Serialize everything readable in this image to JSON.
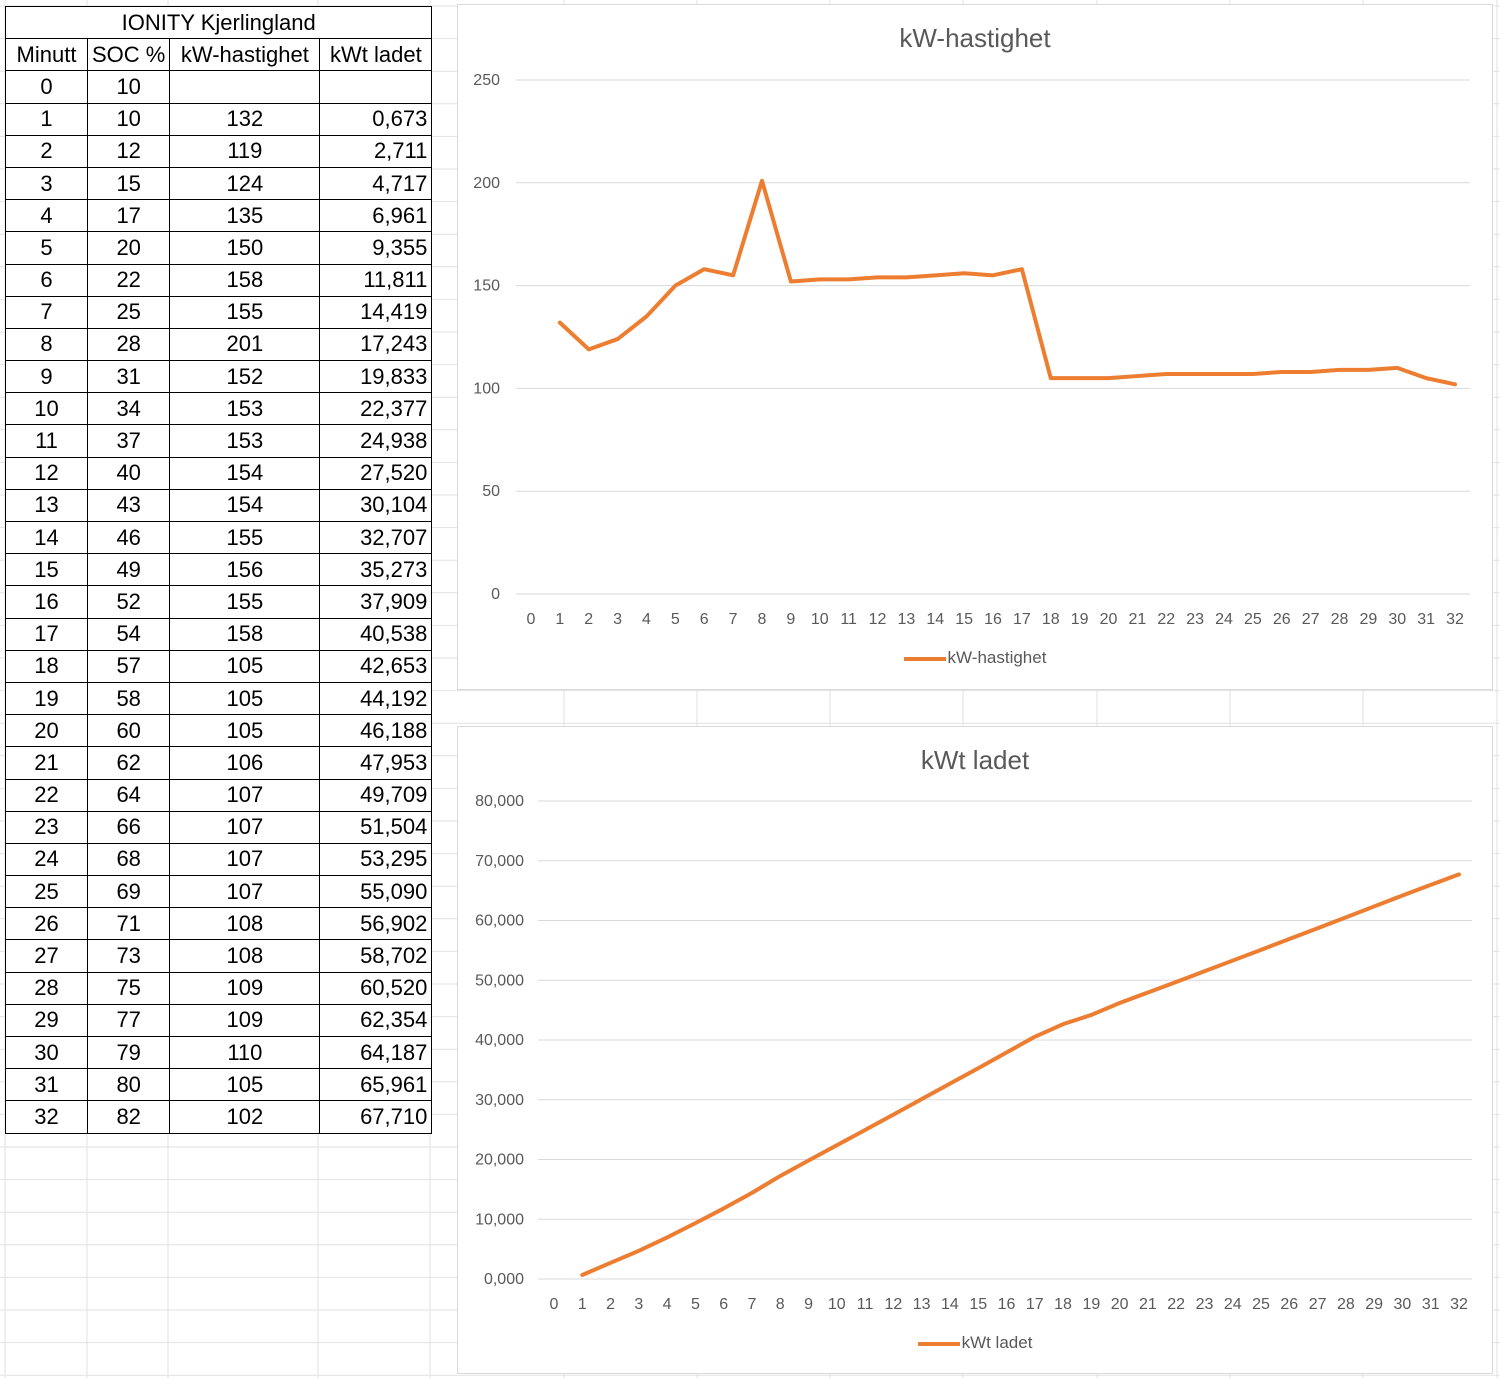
{
  "table": {
    "title": "IONITY Kjerlingland",
    "headers": [
      "Minutt",
      "SOC %",
      "kW-hastighet",
      "kWt ladet"
    ],
    "rows": [
      [
        "0",
        "10",
        "",
        ""
      ],
      [
        "1",
        "10",
        "132",
        "0,673"
      ],
      [
        "2",
        "12",
        "119",
        "2,711"
      ],
      [
        "3",
        "15",
        "124",
        "4,717"
      ],
      [
        "4",
        "17",
        "135",
        "6,961"
      ],
      [
        "5",
        "20",
        "150",
        "9,355"
      ],
      [
        "6",
        "22",
        "158",
        "11,811"
      ],
      [
        "7",
        "25",
        "155",
        "14,419"
      ],
      [
        "8",
        "28",
        "201",
        "17,243"
      ],
      [
        "9",
        "31",
        "152",
        "19,833"
      ],
      [
        "10",
        "34",
        "153",
        "22,377"
      ],
      [
        "11",
        "37",
        "153",
        "24,938"
      ],
      [
        "12",
        "40",
        "154",
        "27,520"
      ],
      [
        "13",
        "43",
        "154",
        "30,104"
      ],
      [
        "14",
        "46",
        "155",
        "32,707"
      ],
      [
        "15",
        "49",
        "156",
        "35,273"
      ],
      [
        "16",
        "52",
        "155",
        "37,909"
      ],
      [
        "17",
        "54",
        "158",
        "40,538"
      ],
      [
        "18",
        "57",
        "105",
        "42,653"
      ],
      [
        "19",
        "58",
        "105",
        "44,192"
      ],
      [
        "20",
        "60",
        "105",
        "46,188"
      ],
      [
        "21",
        "62",
        "106",
        "47,953"
      ],
      [
        "22",
        "64",
        "107",
        "49,709"
      ],
      [
        "23",
        "66",
        "107",
        "51,504"
      ],
      [
        "24",
        "68",
        "107",
        "53,295"
      ],
      [
        "25",
        "69",
        "107",
        "55,090"
      ],
      [
        "26",
        "71",
        "108",
        "56,902"
      ],
      [
        "27",
        "73",
        "108",
        "58,702"
      ],
      [
        "28",
        "75",
        "109",
        "60,520"
      ],
      [
        "29",
        "77",
        "109",
        "62,354"
      ],
      [
        "30",
        "79",
        "110",
        "64,187"
      ],
      [
        "31",
        "80",
        "105",
        "65,961"
      ],
      [
        "32",
        "82",
        "102",
        "67,710"
      ]
    ]
  },
  "chart_data": [
    {
      "type": "line",
      "title": "kW-hastighet",
      "xlabel": "",
      "ylabel": "",
      "categories": [
        "0",
        "1",
        "2",
        "3",
        "4",
        "5",
        "6",
        "7",
        "8",
        "9",
        "10",
        "11",
        "12",
        "13",
        "14",
        "15",
        "16",
        "17",
        "18",
        "19",
        "20",
        "21",
        "22",
        "23",
        "24",
        "25",
        "26",
        "27",
        "28",
        "29",
        "30",
        "31",
        "32"
      ],
      "series": [
        {
          "name": "kW-hastighet",
          "values": [
            null,
            132,
            119,
            124,
            135,
            150,
            158,
            155,
            201,
            152,
            153,
            153,
            154,
            154,
            155,
            156,
            155,
            158,
            105,
            105,
            105,
            106,
            107,
            107,
            107,
            107,
            108,
            108,
            109,
            109,
            110,
            105,
            102
          ]
        }
      ],
      "ylim": [
        0,
        250
      ],
      "yticks": [
        "0",
        "50",
        "100",
        "150",
        "200",
        "250"
      ],
      "grid": true,
      "legend": "bottom",
      "color": "#ED7D31"
    },
    {
      "type": "line",
      "title": "kWt ladet",
      "xlabel": "",
      "ylabel": "",
      "categories": [
        "0",
        "1",
        "2",
        "3",
        "4",
        "5",
        "6",
        "7",
        "8",
        "9",
        "10",
        "11",
        "12",
        "13",
        "14",
        "15",
        "16",
        "17",
        "18",
        "19",
        "20",
        "21",
        "22",
        "23",
        "24",
        "25",
        "26",
        "27",
        "28",
        "29",
        "30",
        "31",
        "32"
      ],
      "series": [
        {
          "name": "kWt ladet",
          "values": [
            null,
            0.673,
            2.711,
            4.717,
            6.961,
            9.355,
            11.811,
            14.419,
            17.243,
            19.833,
            22.377,
            24.938,
            27.52,
            30.104,
            32.707,
            35.273,
            37.909,
            40.538,
            42.653,
            44.192,
            46.188,
            47.953,
            49.709,
            51.504,
            53.295,
            55.09,
            56.902,
            58.702,
            60.52,
            62.354,
            64.187,
            65.961,
            67.71
          ]
        }
      ],
      "ylim": [
        0,
        80
      ],
      "yticks": [
        "0,000",
        "10,000",
        "20,000",
        "30,000",
        "40,000",
        "50,000",
        "60,000",
        "70,000",
        "80,000"
      ],
      "grid": true,
      "legend": "bottom",
      "color": "#ED7D31"
    }
  ]
}
